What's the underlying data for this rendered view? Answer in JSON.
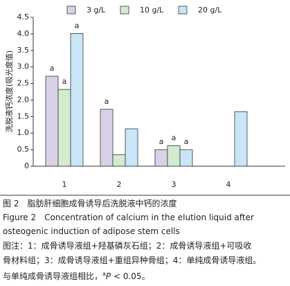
{
  "chart_data": {
    "type": "bar",
    "ylabel": "洗脱液钙浓度(吸光度值)",
    "categories": [
      "1",
      "2",
      "3",
      "4"
    ],
    "series": [
      {
        "name": "3 g/L",
        "color": "#d9d1e8",
        "values": [
          2.72,
          1.72,
          0.5,
          null
        ],
        "annotations": [
          "a",
          "a",
          "a",
          null
        ]
      },
      {
        "name": "10 g/L",
        "color": "#d5ebd0",
        "values": [
          2.32,
          0.35,
          0.62,
          null
        ],
        "annotations": [
          "a",
          null,
          "a",
          null
        ]
      },
      {
        "name": "20 g/L",
        "color": "#c8e6f7",
        "values": [
          4.01,
          1.13,
          0.5,
          1.65
        ],
        "annotations": [
          "a",
          null,
          "a",
          null
        ]
      }
    ],
    "ylim": [
      0,
      4.5
    ],
    "yticks": [
      0,
      0.5,
      {
        "value": 1,
        "label": "1.0"
      },
      1.5,
      {
        "value": 2,
        "label": "2.0"
      },
      2.5,
      {
        "value": 3,
        "label": "3.0"
      },
      3.5,
      {
        "value": 4,
        "label": "4.0"
      },
      4.5
    ],
    "grid": false,
    "legend": "top"
  },
  "caption": {
    "title_cn": "图 2　脂肪肝细胞成骨诱导后洗脱液中钙的浓度",
    "title_en": [
      "Figure 2　Concentration of calcium in the elution liquid after",
      "osteogenic induction of adipose stem cells"
    ],
    "note": [
      "图注：1：成骨诱导液组+羟基磷灰石组；2：成骨诱导液组+可吸收",
      "骨材料组；3：成骨诱导液组+重组异种骨组；4：单纯成骨诱导液组。"
    ],
    "note_last": {
      "text": "与单纯成骨诱导液组相比，",
      "sup": "a",
      "p": "P",
      "rest": " < 0.05。"
    }
  }
}
